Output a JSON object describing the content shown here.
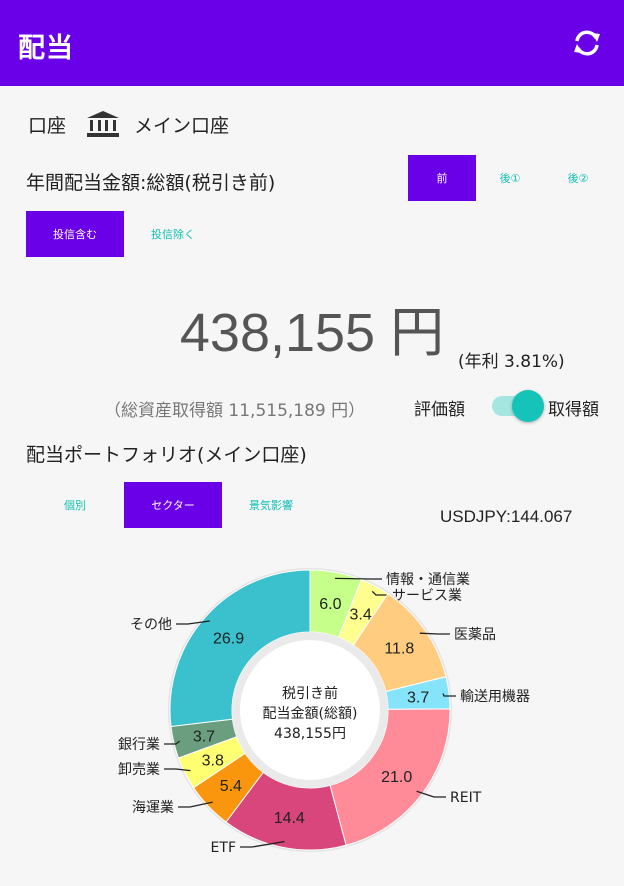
{
  "app": {
    "title": "配当"
  },
  "account": {
    "label": "口座",
    "name": "メイン口座"
  },
  "annual": {
    "label": "年間配当金額:総額(税引き前)",
    "tax_tabs": [
      "前",
      "後①",
      "後②"
    ],
    "tax_selected": "前",
    "trust_tabs": [
      "投信含む",
      "投信除く"
    ],
    "trust_selected": "投信含む",
    "amount": "438,155 円",
    "yield": "(年利 3.81%)",
    "asset_total": "（総資産取得額 11,515,189 円）",
    "toggle_left": "評価額",
    "toggle_right": "取得額",
    "toggle_on": true
  },
  "portfolio": {
    "title": "配当ポートフォリオ(メイン口座)",
    "tabs": [
      "個別",
      "セクター",
      "景気影響"
    ],
    "selected_tab": "セクター",
    "usdjpy": "USDJPY:144.067",
    "center_line1": "税引き前",
    "center_line2": "配当金額(総額)",
    "center_line3": "438,155円"
  },
  "chart_data": {
    "type": "pie",
    "slices": [
      {
        "label": "情報・通信業",
        "value": 6.0,
        "color": "#c6ff8a"
      },
      {
        "label": "サービス業",
        "value": 3.4,
        "color": "#ffff8f"
      },
      {
        "label": "医薬品",
        "value": 11.8,
        "color": "#ffcc80"
      },
      {
        "label": "輸送用機器",
        "value": 3.7,
        "color": "#86e4fa"
      },
      {
        "label": "REIT",
        "value": 21.0,
        "color": "#ff8a98"
      },
      {
        "label": "ETF",
        "value": 14.4,
        "color": "#d9467c"
      },
      {
        "label": "海運業",
        "value": 5.4,
        "color": "#f9960d"
      },
      {
        "label": "卸売業",
        "value": 3.8,
        "color": "#ffff72"
      },
      {
        "label": "銀行業",
        "value": 3.7,
        "color": "#6b9e7f"
      },
      {
        "label": "その他",
        "value": 26.9,
        "color": "#3bc0ce"
      }
    ],
    "colors": {
      "accent": "#6a00e8",
      "teal": "#11bfb3"
    }
  }
}
